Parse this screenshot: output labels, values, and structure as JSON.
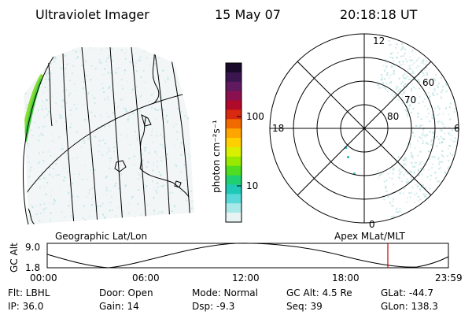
{
  "header": {
    "instrument": "Ultraviolet Imager",
    "date": "15 May 07",
    "time": "20:18:18 UT"
  },
  "colorbar": {
    "unit_label": "photon cm⁻²s⁻¹",
    "ticks": [
      "100",
      "10"
    ],
    "colors": [
      "#1a0a2a",
      "#3a1550",
      "#601a60",
      "#8a1050",
      "#b00a2a",
      "#d82a10",
      "#f06a00",
      "#ffa500",
      "#ffd000",
      "#d8f000",
      "#98e800",
      "#50dc20",
      "#20d070",
      "#20c8b8",
      "#58d8d8",
      "#a8e8e8",
      "#e8f4f4"
    ]
  },
  "geo_map": {
    "label": "Geographic Lat/Lon"
  },
  "polar_plot": {
    "label": "Apex MLat/MLT",
    "mlt_labels": {
      "top": "12",
      "left": "18",
      "right": "6",
      "bottom": "0"
    },
    "lat_labels": [
      "60",
      "70",
      "80"
    ]
  },
  "altitude_plot": {
    "axis_label": "GC Alt",
    "y_ticks": [
      "9.0",
      "1.8"
    ],
    "x_ticks": [
      "00:00",
      "06:00",
      "12:00",
      "18:00",
      "23:59"
    ],
    "marker_color": "#cc0000"
  },
  "info": {
    "flt": "Flt: LBHL",
    "ip": "IP: 36.0",
    "door": "Door: Open",
    "gain": "Gain: 14",
    "mode": "Mode: Normal",
    "dsp": "Dsp:   -9.3",
    "gc_alt": "GC Alt: 4.5 Re",
    "seq": "Seq: 39",
    "glat": "GLat: -44.7",
    "glon": "GLon: 138.3"
  }
}
